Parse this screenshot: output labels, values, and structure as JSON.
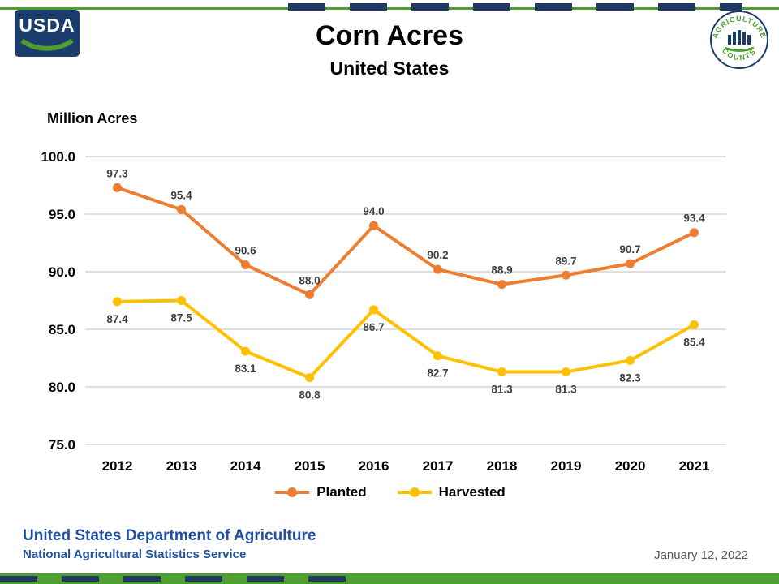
{
  "logos": {
    "usda_text": "USDA",
    "agcounts_top": "AGRICULTURE",
    "agcounts_bottom": "COUNTS"
  },
  "chart_data": {
    "type": "line",
    "title": "Corn Acres",
    "subtitle": "United States",
    "xlabel": "",
    "ylabel": "Million Acres",
    "categories": [
      "2012",
      "2013",
      "2014",
      "2015",
      "2016",
      "2017",
      "2018",
      "2019",
      "2020",
      "2021"
    ],
    "series": [
      {
        "name": "Planted",
        "color": "#ED7D31",
        "values": [
          97.3,
          95.4,
          90.6,
          88.0,
          94.0,
          90.2,
          88.9,
          89.7,
          90.7,
          93.4
        ]
      },
      {
        "name": "Harvested",
        "color": "#FFC000",
        "values": [
          87.4,
          87.5,
          83.1,
          80.8,
          86.7,
          82.7,
          81.3,
          81.3,
          82.3,
          85.4
        ]
      }
    ],
    "ylim": [
      75,
      100
    ],
    "yticks": [
      100,
      95,
      90,
      85,
      80,
      75
    ],
    "grid": true,
    "legend_position": "bottom"
  },
  "footer": {
    "org_line1": "United States Department of Agriculture",
    "org_line2": "National Agricultural Statistics Service",
    "date": "January 12, 2022"
  },
  "colors": {
    "planted_orange": "#ED7D31",
    "harvested_yellow": "#FFC000",
    "brand_navy": "#1F3864",
    "brand_green": "#4E9F2F",
    "footer_blue": "#20509E",
    "gridline_gray": "#BFBFBF",
    "data_label_gray": "#404040",
    "date_gray": "#595959"
  }
}
